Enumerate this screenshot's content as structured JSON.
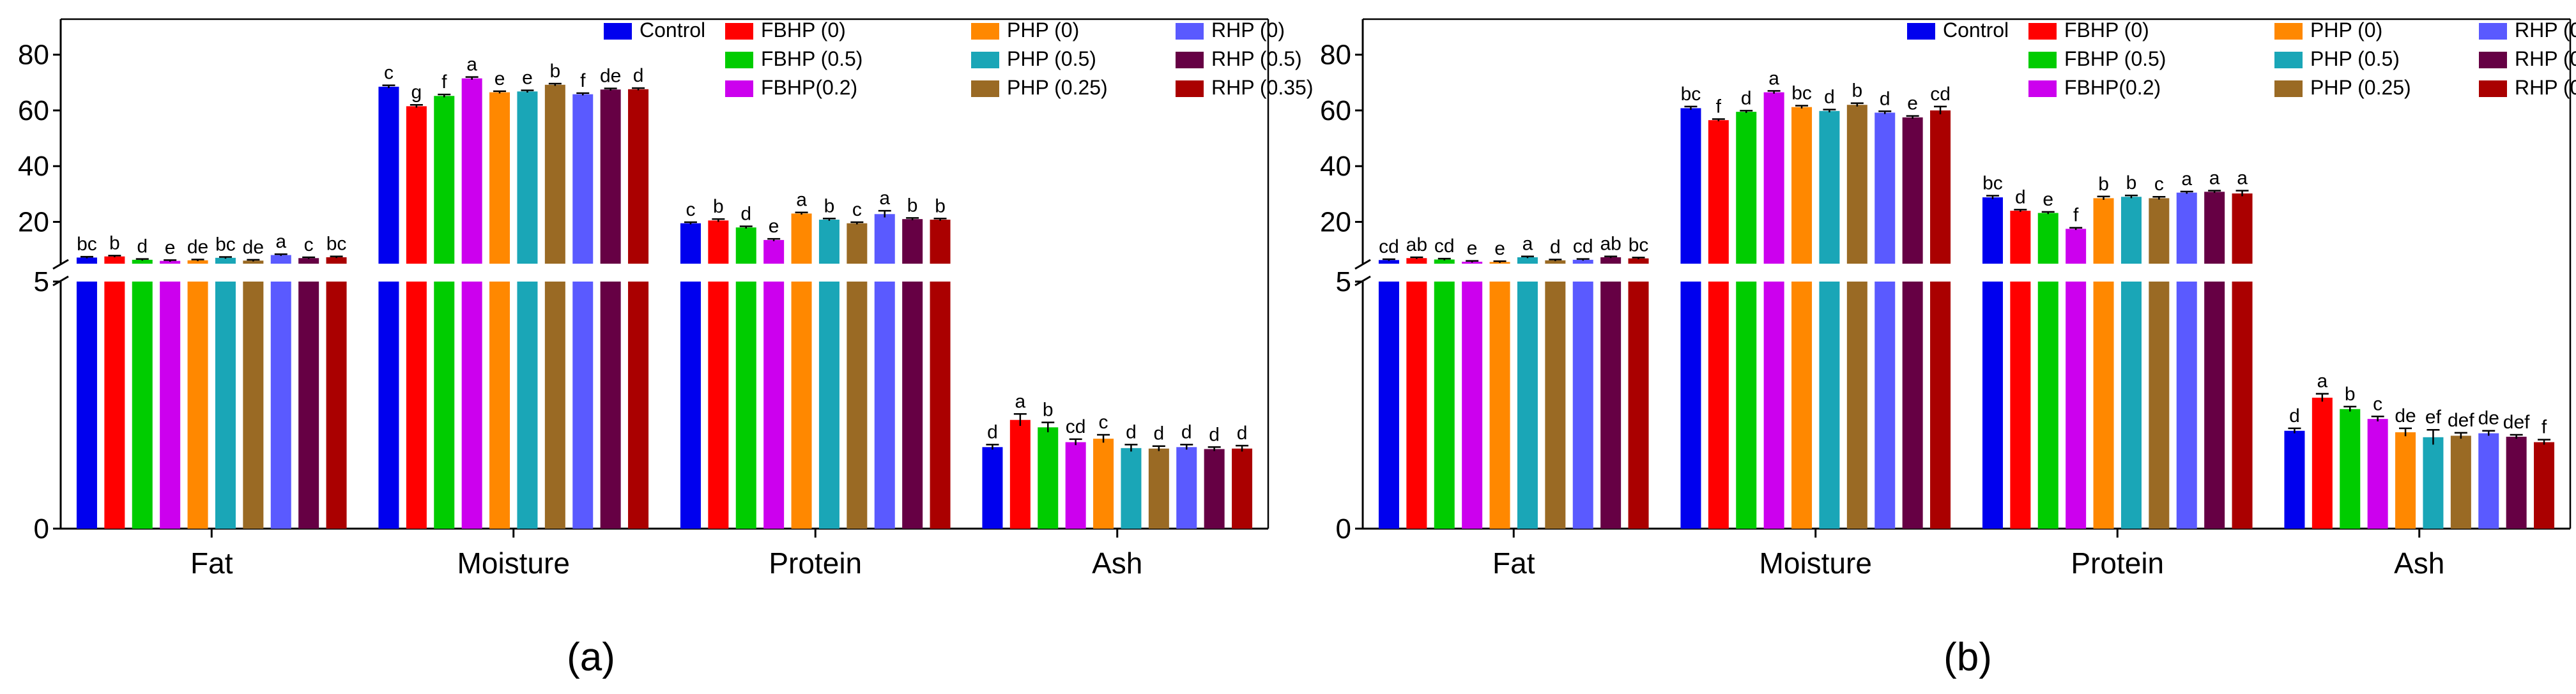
{
  "series_style": [
    {
      "name": "Control",
      "color": "#0000ee"
    },
    {
      "name": "FBHP (0)",
      "color": "#ff0000"
    },
    {
      "name": "FBHP (0.5)",
      "color": "#00cc00"
    },
    {
      "name": "FBHP(0.2)",
      "color": "#cc00ee"
    },
    {
      "name": "PHP (0)",
      "color": "#ff8800"
    },
    {
      "name": "PHP (0.5)",
      "color": "#1aa6b7"
    },
    {
      "name": "PHP (0.25)",
      "color": "#9a6a24"
    },
    {
      "name": "RHP (0)",
      "color": "#5a5aff"
    },
    {
      "name": "RHP (0.5)",
      "color": "#660044"
    },
    {
      "name": "RHP (0.35)",
      "color": "#aa0000"
    }
  ],
  "chart_data": [
    {
      "type": "bar",
      "panel_label": "(a)",
      "categories": [
        "Fat",
        "Moisture",
        "Protein",
        "Ash"
      ],
      "axis": {
        "lower_ticks": [
          "0",
          "5"
        ],
        "upper_ticks": [
          "20",
          "40",
          "60",
          "80"
        ],
        "lower_range": [
          0,
          5
        ],
        "upper_range": [
          5,
          90
        ],
        "break_at": 5
      },
      "series": [
        {
          "name": "Control",
          "values": [
            7.2,
            68.5,
            19.5,
            1.65
          ],
          "errors": [
            0.3,
            0.5,
            0.4,
            0.05
          ],
          "letters": [
            "bc",
            "c",
            "c",
            "d"
          ]
        },
        {
          "name": "FBHP (0)",
          "values": [
            7.6,
            61.5,
            20.5,
            2.2
          ],
          "errors": [
            0.3,
            0.5,
            0.5,
            0.12
          ],
          "letters": [
            "b",
            "g",
            "b",
            "a"
          ]
        },
        {
          "name": "FBHP (0.5)",
          "values": [
            6.4,
            65.2,
            18.0,
            2.05
          ],
          "errors": [
            0.3,
            0.5,
            0.4,
            0.1
          ],
          "letters": [
            "d",
            "f",
            "d",
            "b"
          ]
        },
        {
          "name": "FBHP(0.2)",
          "values": [
            6.0,
            71.5,
            13.5,
            1.75
          ],
          "errors": [
            0.3,
            0.5,
            0.4,
            0.06
          ],
          "letters": [
            "e",
            "a",
            "e",
            "cd"
          ]
        },
        {
          "name": "PHP (0)",
          "values": [
            6.2,
            66.5,
            23.0,
            1.82
          ],
          "errors": [
            0.3,
            0.4,
            0.4,
            0.08
          ],
          "letters": [
            "de",
            "e",
            "a",
            "c"
          ]
        },
        {
          "name": "PHP (0.5)",
          "values": [
            7.1,
            66.8,
            20.8,
            1.63
          ],
          "errors": [
            0.3,
            0.4,
            0.4,
            0.07
          ],
          "letters": [
            "bc",
            "e",
            "b",
            "d"
          ]
        },
        {
          "name": "PHP (0.25)",
          "values": [
            6.1,
            69.2,
            19.5,
            1.62
          ],
          "errors": [
            0.3,
            0.4,
            0.4,
            0.05
          ],
          "letters": [
            "de",
            "b",
            "c",
            "d"
          ]
        },
        {
          "name": "RHP (0)",
          "values": [
            8.1,
            65.8,
            22.8,
            1.65
          ],
          "errors": [
            0.3,
            0.4,
            1.2,
            0.05
          ],
          "letters": [
            "a",
            "f",
            "a",
            "d"
          ]
        },
        {
          "name": "RHP (0.5)",
          "values": [
            7.0,
            67.5,
            21.0,
            1.61
          ],
          "errors": [
            0.3,
            0.4,
            0.4,
            0.04
          ],
          "letters": [
            "c",
            "de",
            "b",
            "d"
          ]
        },
        {
          "name": "RHP (0.35)",
          "values": [
            7.3,
            67.6,
            20.8,
            1.62
          ],
          "errors": [
            0.3,
            0.4,
            0.4,
            0.06
          ],
          "letters": [
            "bc",
            "d",
            "b",
            "d"
          ]
        }
      ]
    },
    {
      "type": "bar",
      "panel_label": "(b)",
      "categories": [
        "Fat",
        "Moisture",
        "Protein",
        "Ash"
      ],
      "axis": {
        "lower_ticks": [
          "0",
          "5"
        ],
        "upper_ticks": [
          "20",
          "40",
          "60",
          "80"
        ],
        "lower_range": [
          0,
          5
        ],
        "upper_range": [
          5,
          90
        ],
        "break_at": 5
      },
      "series": [
        {
          "name": "Control",
          "values": [
            6.3,
            60.8,
            28.8,
            1.98
          ],
          "errors": [
            0.3,
            0.6,
            0.6,
            0.05
          ],
          "letters": [
            "cd",
            "bc",
            "bc",
            "d"
          ]
        },
        {
          "name": "FBHP (0)",
          "values": [
            7.0,
            56.5,
            24.0,
            2.65
          ],
          "errors": [
            0.3,
            0.4,
            0.4,
            0.08
          ],
          "letters": [
            "ab",
            "f",
            "d",
            "a"
          ]
        },
        {
          "name": "FBHP (0.5)",
          "values": [
            6.5,
            59.5,
            23.2,
            2.42
          ],
          "errors": [
            0.3,
            0.4,
            0.4,
            0.05
          ],
          "letters": [
            "cd",
            "d",
            "e",
            "b"
          ]
        },
        {
          "name": "FBHP(0.2)",
          "values": [
            5.7,
            66.5,
            17.5,
            2.22
          ],
          "errors": [
            0.3,
            0.5,
            0.4,
            0.05
          ],
          "letters": [
            "e",
            "a",
            "f",
            "c"
          ]
        },
        {
          "name": "PHP (0)",
          "values": [
            5.6,
            61.2,
            28.5,
            1.95
          ],
          "errors": [
            0.3,
            0.5,
            0.6,
            0.08
          ],
          "letters": [
            "e",
            "bc",
            "b",
            "de"
          ]
        },
        {
          "name": "PHP (0.5)",
          "values": [
            7.3,
            59.8,
            29.0,
            1.85
          ],
          "errors": [
            0.3,
            0.5,
            0.5,
            0.15
          ],
          "letters": [
            "a",
            "d",
            "b",
            "ef"
          ]
        },
        {
          "name": "PHP (0.25)",
          "values": [
            6.2,
            62.0,
            28.5,
            1.88
          ],
          "errors": [
            0.3,
            0.6,
            0.5,
            0.06
          ],
          "letters": [
            "d",
            "b",
            "c",
            "def"
          ]
        },
        {
          "name": "RHP (0)",
          "values": [
            6.4,
            59.2,
            30.5,
            1.93
          ],
          "errors": [
            0.3,
            0.5,
            0.4,
            0.05
          ],
          "letters": [
            "cd",
            "d",
            "a",
            "de"
          ]
        },
        {
          "name": "RHP (0.5)",
          "values": [
            7.3,
            57.5,
            30.8,
            1.86
          ],
          "errors": [
            0.3,
            0.5,
            0.4,
            0.04
          ],
          "letters": [
            "ab",
            "e",
            "a",
            "def"
          ]
        },
        {
          "name": "RHP (0.35)",
          "values": [
            6.9,
            60.0,
            30.2,
            1.75
          ],
          "errors": [
            0.3,
            1.4,
            1.0,
            0.05
          ],
          "letters": [
            "bc",
            "cd",
            "a",
            "f"
          ]
        }
      ]
    }
  ]
}
